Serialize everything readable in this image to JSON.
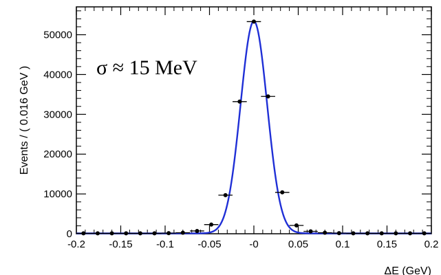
{
  "chart_data": {
    "type": "scatter",
    "xlabel": "ΔE (GeV)",
    "ylabel": "Events / ( 0.016 GeV )",
    "annotation": "σ ≈ 15 MeV",
    "xlim": [
      -0.2,
      0.2
    ],
    "ylim": [
      0,
      57000
    ],
    "x_ticks": [
      -0.2,
      -0.15,
      -0.1,
      -0.05,
      0,
      0.05,
      0.1,
      0.15,
      0.2
    ],
    "x_tick_labels": [
      "-0.2",
      "-0.15",
      "-0.1",
      "-0.05",
      "-0",
      "0.05",
      "0.1",
      "0.15",
      "0.2"
    ],
    "y_ticks": [
      0,
      10000,
      20000,
      30000,
      40000,
      50000
    ],
    "y_tick_labels": [
      "0",
      "10000",
      "20000",
      "30000",
      "40000",
      "50000"
    ],
    "grid": false,
    "series": [
      {
        "kind": "points",
        "color": "#000000",
        "x_error": 0.008,
        "x": [
          -0.192,
          -0.176,
          -0.16,
          -0.144,
          -0.128,
          -0.112,
          -0.096,
          -0.08,
          -0.064,
          -0.048,
          -0.032,
          -0.016,
          0.0,
          0.016,
          0.032,
          0.048,
          0.064,
          0.08,
          0.096,
          0.112,
          0.128,
          0.144,
          0.16,
          0.176,
          0.192
        ],
        "y": [
          100,
          100,
          100,
          100,
          100,
          100,
          150,
          250,
          700,
          2300,
          9700,
          33200,
          53300,
          34500,
          10400,
          2100,
          600,
          250,
          150,
          100,
          100,
          100,
          100,
          100,
          100
        ]
      },
      {
        "kind": "fit-curve",
        "color": "#1f2fd6",
        "model": "gaussian",
        "amplitude": 53300,
        "mean": 0.0,
        "sigma": 0.015,
        "baseline": 100
      }
    ]
  }
}
